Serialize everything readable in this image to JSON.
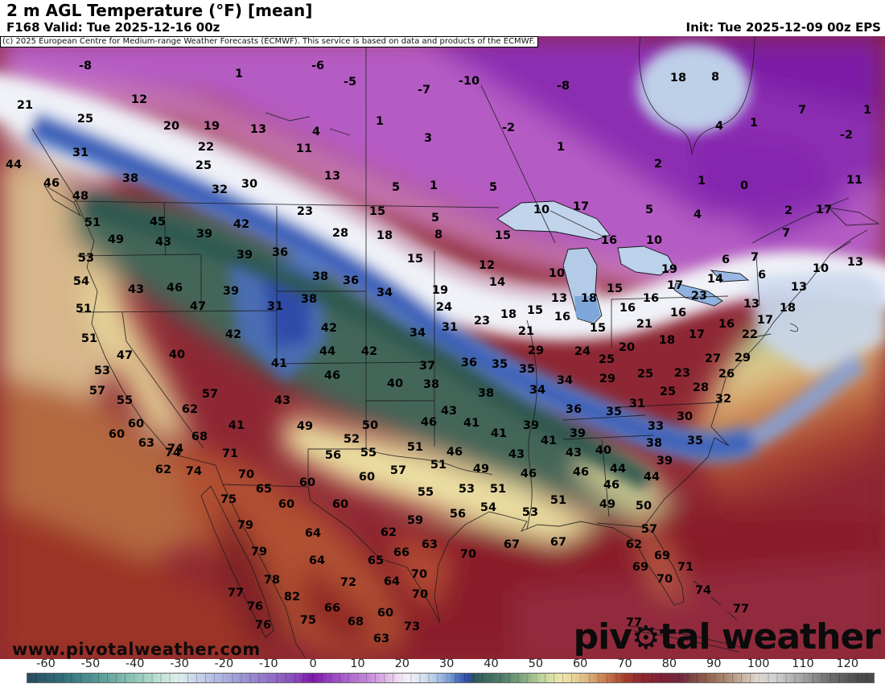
{
  "header": {
    "title": "2 m AGL Temperature (°F) [mean]",
    "valid": "F168 Valid: Tue 2025-12-16 00z",
    "init": "Init: Tue 2025-12-09 00z EPS"
  },
  "copyright": "(c) 2025 European Centre for Medium-range Weather Forecasts (ECMWF). This service is based on data and products of the ECMWF.",
  "watermark": "www.pivotalweather.com",
  "logo": {
    "prefix": "piv",
    "gear": "⚙",
    "suffix": "tal weather"
  },
  "colorbar": {
    "ticks": [
      -60,
      -50,
      -40,
      -30,
      -20,
      -10,
      0,
      10,
      20,
      30,
      40,
      50,
      60,
      70,
      80,
      90,
      100,
      110,
      120
    ],
    "stops": [
      [
        -64,
        "#2a4a5e"
      ],
      [
        -56,
        "#31707a"
      ],
      [
        -48,
        "#579a96"
      ],
      [
        -40,
        "#8fc5b8"
      ],
      [
        -34,
        "#c2e2d6"
      ],
      [
        -30,
        "#dceee8"
      ],
      [
        -27,
        "#cdd9ea"
      ],
      [
        -22,
        "#b3bce2"
      ],
      [
        -16,
        "#9d97d4"
      ],
      [
        -10,
        "#9373c8"
      ],
      [
        -4,
        "#8a4cbc"
      ],
      [
        0,
        "#7d18a8"
      ],
      [
        3,
        "#9138bc"
      ],
      [
        8,
        "#ad66cc"
      ],
      [
        13,
        "#c78eda"
      ],
      [
        17,
        "#e0bce8"
      ],
      [
        20,
        "#f2e6f4"
      ],
      [
        22,
        "#f0f0f6"
      ],
      [
        25,
        "#d4dfee"
      ],
      [
        28,
        "#adc4e4"
      ],
      [
        31,
        "#7398d0"
      ],
      [
        33,
        "#4a68ba"
      ],
      [
        35,
        "#2c4da6"
      ],
      [
        36,
        "#2c5560"
      ],
      [
        39,
        "#3c6a60"
      ],
      [
        43,
        "#547f6a"
      ],
      [
        47,
        "#7fa67e"
      ],
      [
        51,
        "#b8cf9a"
      ],
      [
        54,
        "#e0e0a8"
      ],
      [
        56,
        "#eee4ac"
      ],
      [
        58,
        "#ecd89c"
      ],
      [
        61,
        "#dfbc85"
      ],
      [
        64,
        "#d0945f"
      ],
      [
        67,
        "#c06c48"
      ],
      [
        70,
        "#a63f2e"
      ],
      [
        74,
        "#902832"
      ],
      [
        79,
        "#7d2238"
      ],
      [
        83,
        "#732a40"
      ],
      [
        85,
        "#7e4442"
      ],
      [
        89,
        "#94654f"
      ],
      [
        93,
        "#ab8a71"
      ],
      [
        97,
        "#c9b6a4"
      ],
      [
        100,
        "#dcd6ce"
      ],
      [
        104,
        "#cfcfcf"
      ],
      [
        110,
        "#a3a3a3"
      ],
      [
        116,
        "#6f6f6f"
      ],
      [
        123,
        "#4a4a4a"
      ]
    ]
  },
  "map": {
    "region": "North America",
    "temp_labels": [
      [
        -8,
        106,
        82
      ],
      [
        1,
        297,
        92
      ],
      [
        12,
        173,
        124
      ],
      [
        21,
        31,
        131
      ],
      [
        25,
        106,
        148
      ],
      [
        20,
        213,
        157
      ],
      [
        19,
        263,
        157
      ],
      [
        13,
        321,
        161
      ],
      [
        31,
        100,
        190
      ],
      [
        22,
        256,
        183
      ],
      [
        25,
        253,
        206
      ],
      [
        44,
        17,
        205
      ],
      [
        38,
        162,
        222
      ],
      [
        46,
        64,
        228
      ],
      [
        48,
        100,
        244
      ],
      [
        30,
        310,
        229
      ],
      [
        32,
        273,
        236
      ],
      [
        51,
        115,
        277
      ],
      [
        45,
        196,
        276
      ],
      [
        42,
        300,
        279
      ],
      [
        39,
        254,
        291
      ],
      [
        49,
        144,
        298
      ],
      [
        43,
        203,
        301
      ],
      [
        -6,
        395,
        82
      ],
      [
        -5,
        435,
        102
      ],
      [
        -7,
        527,
        112
      ],
      [
        -10,
        583,
        101
      ],
      [
        -8,
        700,
        107
      ],
      [
        1,
        472,
        151
      ],
      [
        4,
        393,
        164
      ],
      [
        -2,
        632,
        159
      ],
      [
        11,
        378,
        185
      ],
      [
        3,
        532,
        172
      ],
      [
        1,
        697,
        183
      ],
      [
        13,
        413,
        219
      ],
      [
        5,
        492,
        233
      ],
      [
        1,
        539,
        231
      ],
      [
        5,
        613,
        233
      ],
      [
        23,
        379,
        263
      ],
      [
        15,
        469,
        263
      ],
      [
        10,
        673,
        261
      ],
      [
        17,
        722,
        257
      ],
      [
        28,
        423,
        290
      ],
      [
        18,
        478,
        293
      ],
      [
        5,
        541,
        271
      ],
      [
        8,
        545,
        292
      ],
      [
        15,
        625,
        293
      ],
      [
        16,
        757,
        299
      ],
      [
        18,
        843,
        97
      ],
      [
        8,
        889,
        96
      ],
      [
        7,
        997,
        137
      ],
      [
        1,
        1078,
        137
      ],
      [
        4,
        894,
        157
      ],
      [
        1,
        937,
        153
      ],
      [
        -2,
        1052,
        168
      ],
      [
        2,
        818,
        204
      ],
      [
        1,
        872,
        225
      ],
      [
        0,
        925,
        231
      ],
      [
        11,
        1062,
        224
      ],
      [
        5,
        807,
        261
      ],
      [
        4,
        867,
        267
      ],
      [
        2,
        980,
        262
      ],
      [
        17,
        1024,
        261
      ],
      [
        10,
        813,
        299
      ],
      [
        7,
        977,
        290
      ],
      [
        53,
        107,
        321
      ],
      [
        54,
        101,
        350
      ],
      [
        43,
        169,
        360
      ],
      [
        46,
        217,
        358
      ],
      [
        39,
        304,
        317
      ],
      [
        36,
        348,
        314
      ],
      [
        39,
        287,
        362
      ],
      [
        47,
        246,
        381
      ],
      [
        31,
        342,
        381
      ],
      [
        51,
        104,
        384
      ],
      [
        51,
        111,
        421
      ],
      [
        42,
        290,
        416
      ],
      [
        47,
        155,
        442
      ],
      [
        40,
        220,
        441
      ],
      [
        41,
        347,
        452
      ],
      [
        53,
        127,
        461
      ],
      [
        57,
        121,
        486
      ],
      [
        55,
        155,
        498
      ],
      [
        57,
        261,
        490
      ],
      [
        43,
        351,
        498
      ],
      [
        62,
        236,
        509
      ],
      [
        60,
        169,
        527
      ],
      [
        41,
        294,
        529
      ],
      [
        60,
        145,
        540
      ],
      [
        68,
        248,
        543
      ],
      [
        63,
        182,
        551
      ],
      [
        74,
        218,
        558
      ],
      [
        15,
        516,
        322
      ],
      [
        12,
        605,
        330
      ],
      [
        38,
        398,
        344
      ],
      [
        36,
        436,
        349
      ],
      [
        14,
        618,
        351
      ],
      [
        10,
        692,
        340
      ],
      [
        34,
        478,
        364
      ],
      [
        19,
        547,
        361
      ],
      [
        38,
        384,
        372
      ],
      [
        13,
        695,
        371
      ],
      [
        18,
        732,
        371
      ],
      [
        24,
        552,
        382
      ],
      [
        15,
        665,
        386
      ],
      [
        18,
        632,
        391
      ],
      [
        16,
        699,
        394
      ],
      [
        23,
        599,
        399
      ],
      [
        42,
        409,
        408
      ],
      [
        31,
        559,
        407
      ],
      [
        34,
        519,
        414
      ],
      [
        21,
        654,
        412
      ],
      [
        44,
        407,
        437
      ],
      [
        42,
        459,
        437
      ],
      [
        29,
        666,
        436
      ],
      [
        24,
        724,
        437
      ],
      [
        46,
        413,
        467
      ],
      [
        37,
        531,
        455
      ],
      [
        36,
        583,
        451
      ],
      [
        35,
        621,
        453
      ],
      [
        35,
        655,
        459
      ],
      [
        40,
        491,
        477
      ],
      [
        38,
        536,
        478
      ],
      [
        34,
        702,
        473
      ],
      [
        34,
        668,
        485
      ],
      [
        38,
        604,
        489
      ],
      [
        36,
        713,
        509
      ],
      [
        43,
        558,
        511
      ],
      [
        46,
        533,
        525
      ],
      [
        41,
        586,
        526
      ],
      [
        49,
        379,
        530
      ],
      [
        50,
        460,
        529
      ],
      [
        39,
        660,
        529
      ],
      [
        39,
        718,
        539
      ],
      [
        41,
        620,
        539
      ],
      [
        41,
        682,
        548
      ],
      [
        52,
        437,
        546
      ],
      [
        51,
        516,
        556
      ],
      [
        6,
        902,
        323
      ],
      [
        7,
        938,
        320
      ],
      [
        19,
        832,
        335
      ],
      [
        10,
        1020,
        334
      ],
      [
        13,
        1063,
        326
      ],
      [
        14,
        889,
        347
      ],
      [
        6,
        947,
        342
      ],
      [
        17,
        839,
        355
      ],
      [
        15,
        764,
        359
      ],
      [
        13,
        993,
        357
      ],
      [
        23,
        869,
        368
      ],
      [
        16,
        809,
        371
      ],
      [
        16,
        780,
        383
      ],
      [
        13,
        934,
        378
      ],
      [
        18,
        979,
        383
      ],
      [
        16,
        843,
        389
      ],
      [
        17,
        951,
        398
      ],
      [
        21,
        801,
        403
      ],
      [
        16,
        903,
        403
      ],
      [
        15,
        743,
        408
      ],
      [
        17,
        866,
        416
      ],
      [
        18,
        829,
        423
      ],
      [
        22,
        932,
        416
      ],
      [
        20,
        779,
        432
      ],
      [
        25,
        754,
        447
      ],
      [
        27,
        886,
        446
      ],
      [
        29,
        923,
        445
      ],
      [
        29,
        755,
        471
      ],
      [
        25,
        802,
        465
      ],
      [
        23,
        848,
        464
      ],
      [
        26,
        903,
        465
      ],
      [
        28,
        871,
        482
      ],
      [
        25,
        830,
        487
      ],
      [
        31,
        792,
        502
      ],
      [
        32,
        899,
        496
      ],
      [
        35,
        763,
        512
      ],
      [
        30,
        851,
        518
      ],
      [
        33,
        815,
        530
      ],
      [
        35,
        864,
        548
      ],
      [
        38,
        813,
        551
      ],
      [
        40,
        750,
        560
      ],
      [
        74,
        215,
        563
      ],
      [
        71,
        286,
        564
      ],
      [
        62,
        203,
        584
      ],
      [
        74,
        241,
        586
      ],
      [
        70,
        306,
        590
      ],
      [
        65,
        328,
        608
      ],
      [
        60,
        356,
        627
      ],
      [
        75,
        284,
        621
      ],
      [
        79,
        305,
        653
      ],
      [
        79,
        322,
        686
      ],
      [
        78,
        338,
        721
      ],
      [
        82,
        363,
        742
      ],
      [
        77,
        293,
        737
      ],
      [
        76,
        317,
        754
      ],
      [
        76,
        327,
        777
      ],
      [
        56,
        414,
        566
      ],
      [
        55,
        458,
        563
      ],
      [
        46,
        565,
        562
      ],
      [
        43,
        642,
        565
      ],
      [
        43,
        713,
        563
      ],
      [
        57,
        495,
        585
      ],
      [
        51,
        545,
        578
      ],
      [
        49,
        598,
        583
      ],
      [
        46,
        657,
        589
      ],
      [
        46,
        722,
        587
      ],
      [
        60,
        456,
        593
      ],
      [
        60,
        382,
        600
      ],
      [
        53,
        580,
        608
      ],
      [
        51,
        619,
        608
      ],
      [
        51,
        694,
        622
      ],
      [
        55,
        529,
        612
      ],
      [
        60,
        423,
        627
      ],
      [
        54,
        607,
        631
      ],
      [
        53,
        659,
        637
      ],
      [
        56,
        569,
        639
      ],
      [
        59,
        516,
        647
      ],
      [
        64,
        389,
        663
      ],
      [
        62,
        483,
        662
      ],
      [
        63,
        534,
        677
      ],
      [
        67,
        636,
        677
      ],
      [
        67,
        694,
        674
      ],
      [
        66,
        499,
        687
      ],
      [
        70,
        582,
        689
      ],
      [
        64,
        394,
        697
      ],
      [
        65,
        467,
        697
      ],
      [
        72,
        433,
        724
      ],
      [
        64,
        487,
        723
      ],
      [
        70,
        521,
        714
      ],
      [
        70,
        522,
        739
      ],
      [
        66,
        413,
        756
      ],
      [
        60,
        479,
        762
      ],
      [
        68,
        442,
        773
      ],
      [
        75,
        383,
        771
      ],
      [
        73,
        512,
        779
      ],
      [
        63,
        474,
        794
      ],
      [
        39,
        826,
        573
      ],
      [
        44,
        768,
        583
      ],
      [
        44,
        810,
        593
      ],
      [
        46,
        760,
        603
      ],
      [
        49,
        755,
        627
      ],
      [
        50,
        800,
        629
      ],
      [
        57,
        807,
        658
      ],
      [
        62,
        788,
        677
      ],
      [
        69,
        823,
        691
      ],
      [
        69,
        796,
        705
      ],
      [
        71,
        852,
        705
      ],
      [
        70,
        826,
        720
      ],
      [
        74,
        874,
        734
      ],
      [
        77,
        921,
        757
      ],
      [
        77,
        788,
        774
      ]
    ]
  }
}
